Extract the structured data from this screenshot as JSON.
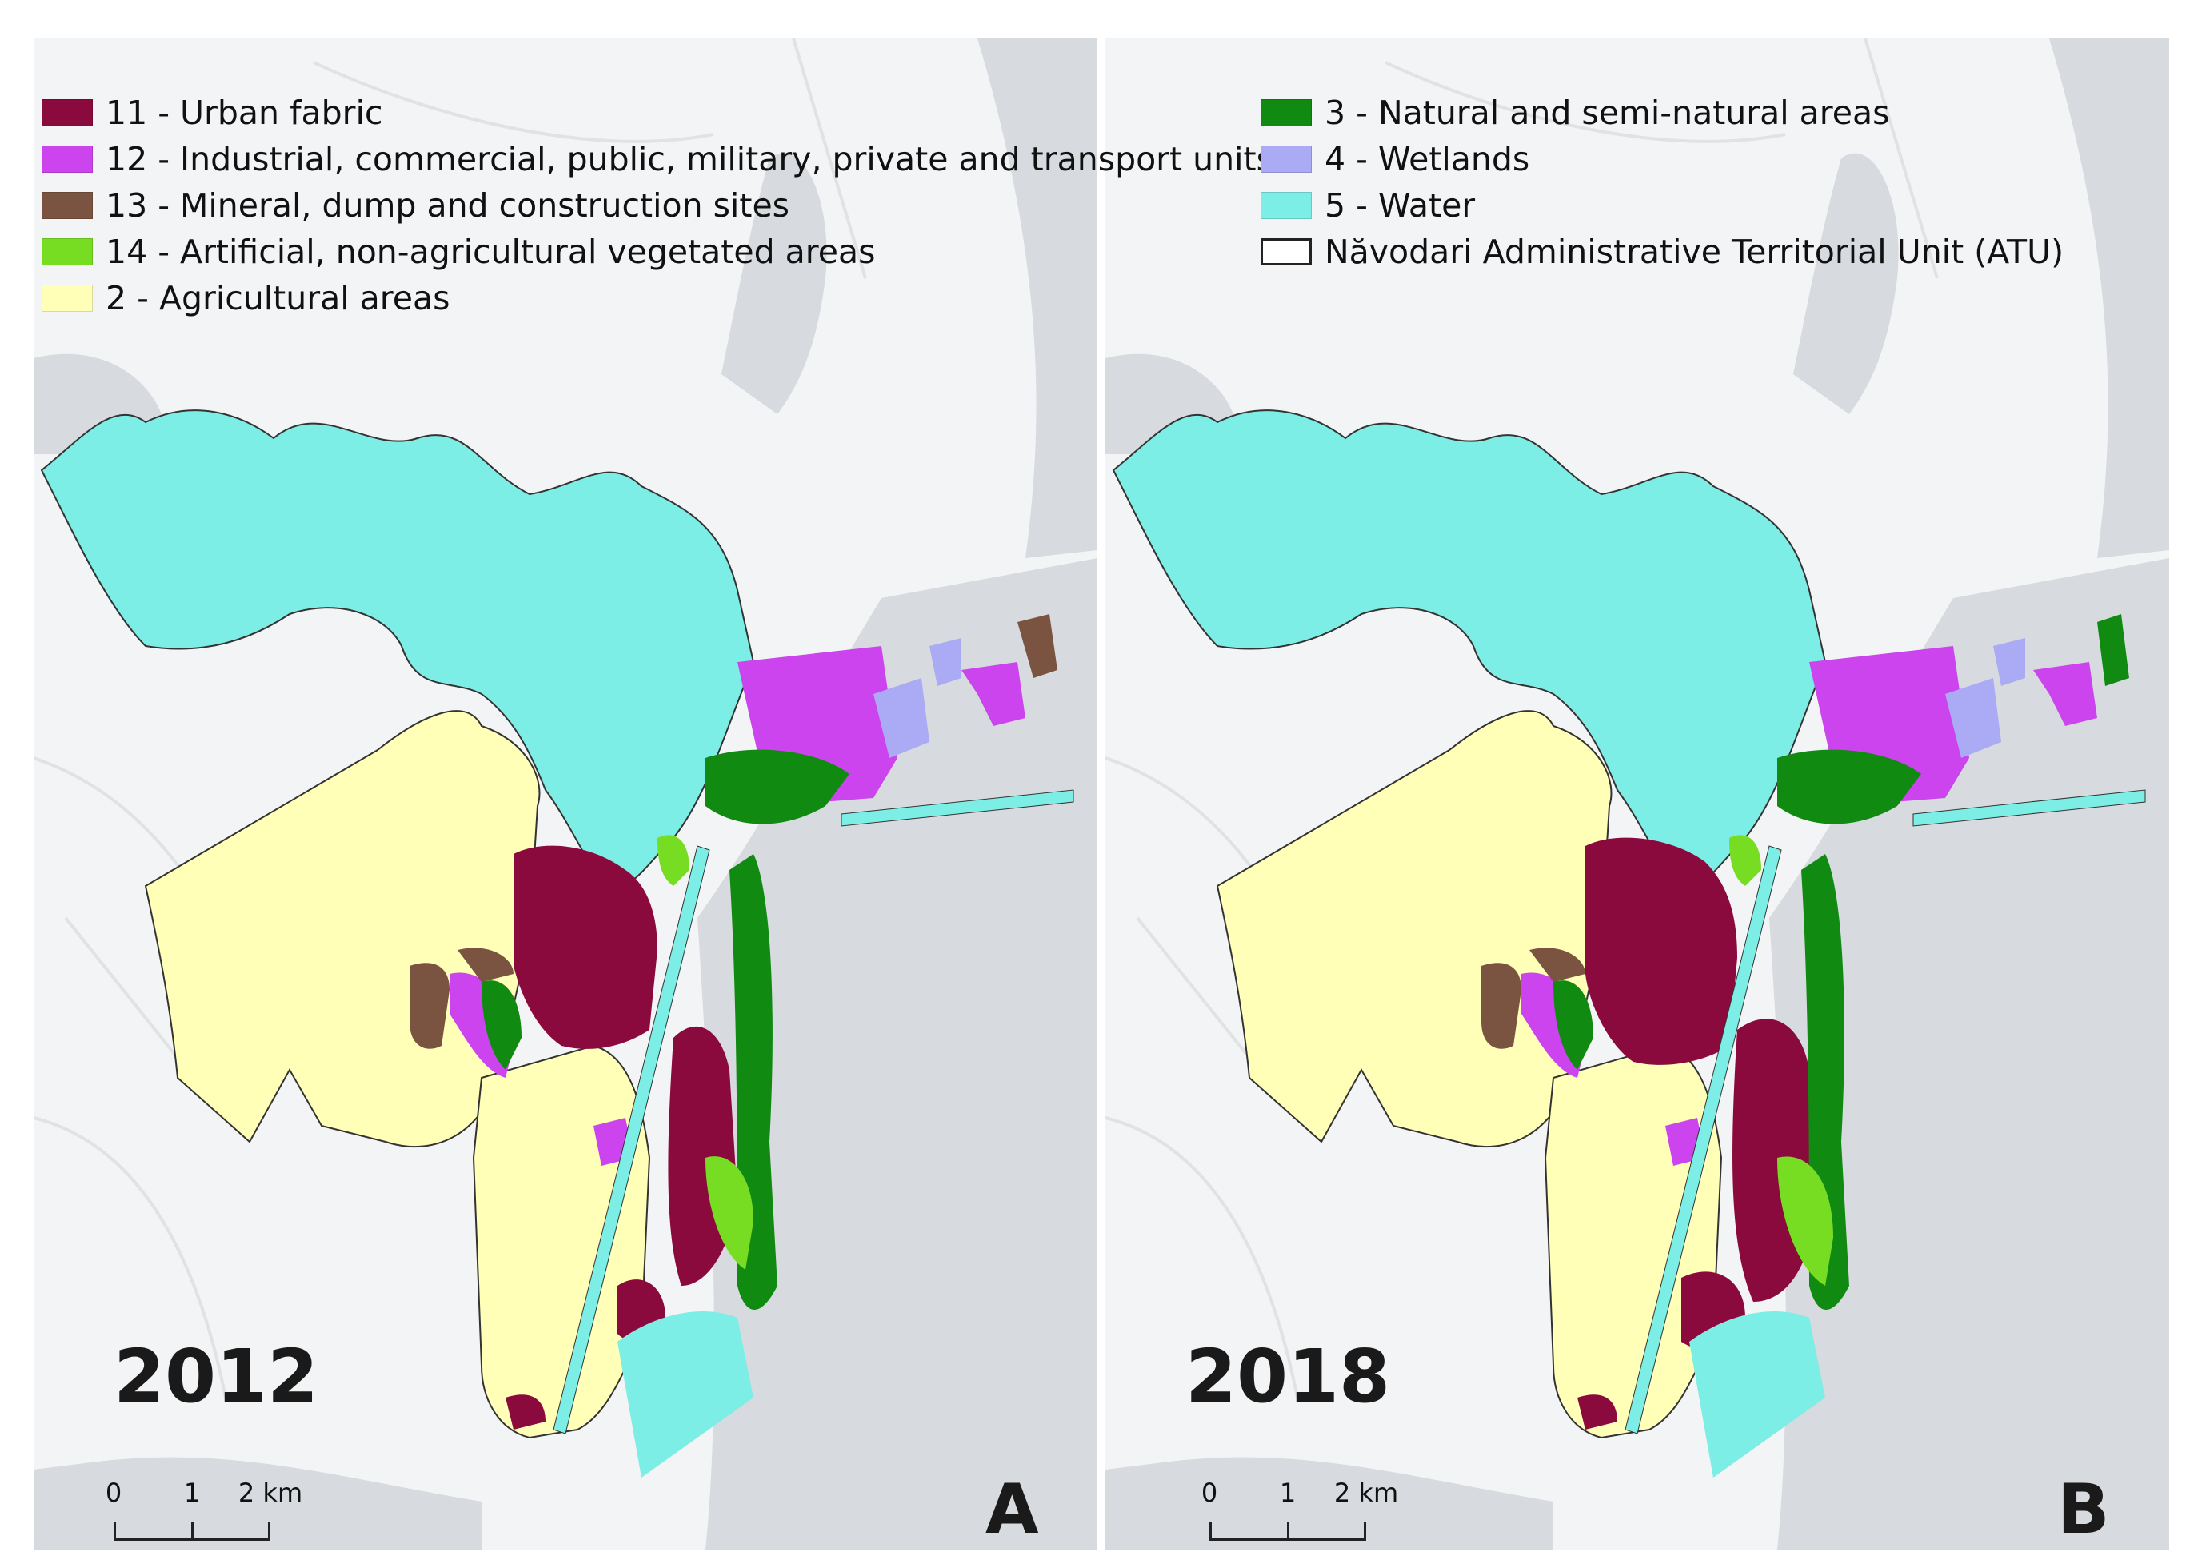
{
  "figure": {
    "panels": [
      {
        "id": "A",
        "year": "2012",
        "label": "A"
      },
      {
        "id": "B",
        "year": "2018",
        "label": "B"
      }
    ],
    "scale_bar": {
      "ticks": [
        "0",
        "1",
        "2 km"
      ]
    }
  },
  "legend": {
    "left": [
      {
        "label": "11 - Urban fabric",
        "color": "#8b0a3d"
      },
      {
        "label": "12 - Industrial, commercial, public, military, private and transport units",
        "color": "#cc44ee"
      },
      {
        "label": "13 - Mineral, dump and construction sites",
        "color": "#7a5440"
      },
      {
        "label": "14 - Artificial, non-agricultural vegetated areas",
        "color": "#77dd22"
      },
      {
        "label": "2 - Agricultural areas",
        "color": "#ffffb8"
      }
    ],
    "right": [
      {
        "label": "3 - Natural and semi-natural areas",
        "color": "#108a10"
      },
      {
        "label": "4 - Wetlands",
        "color": "#aaaaf5"
      },
      {
        "label": "5 - Water",
        "color": "#7deee6"
      },
      {
        "label": "Năvodari Administrative Territorial Unit (ATU)",
        "color": "#ffffff",
        "outline": true
      }
    ]
  }
}
